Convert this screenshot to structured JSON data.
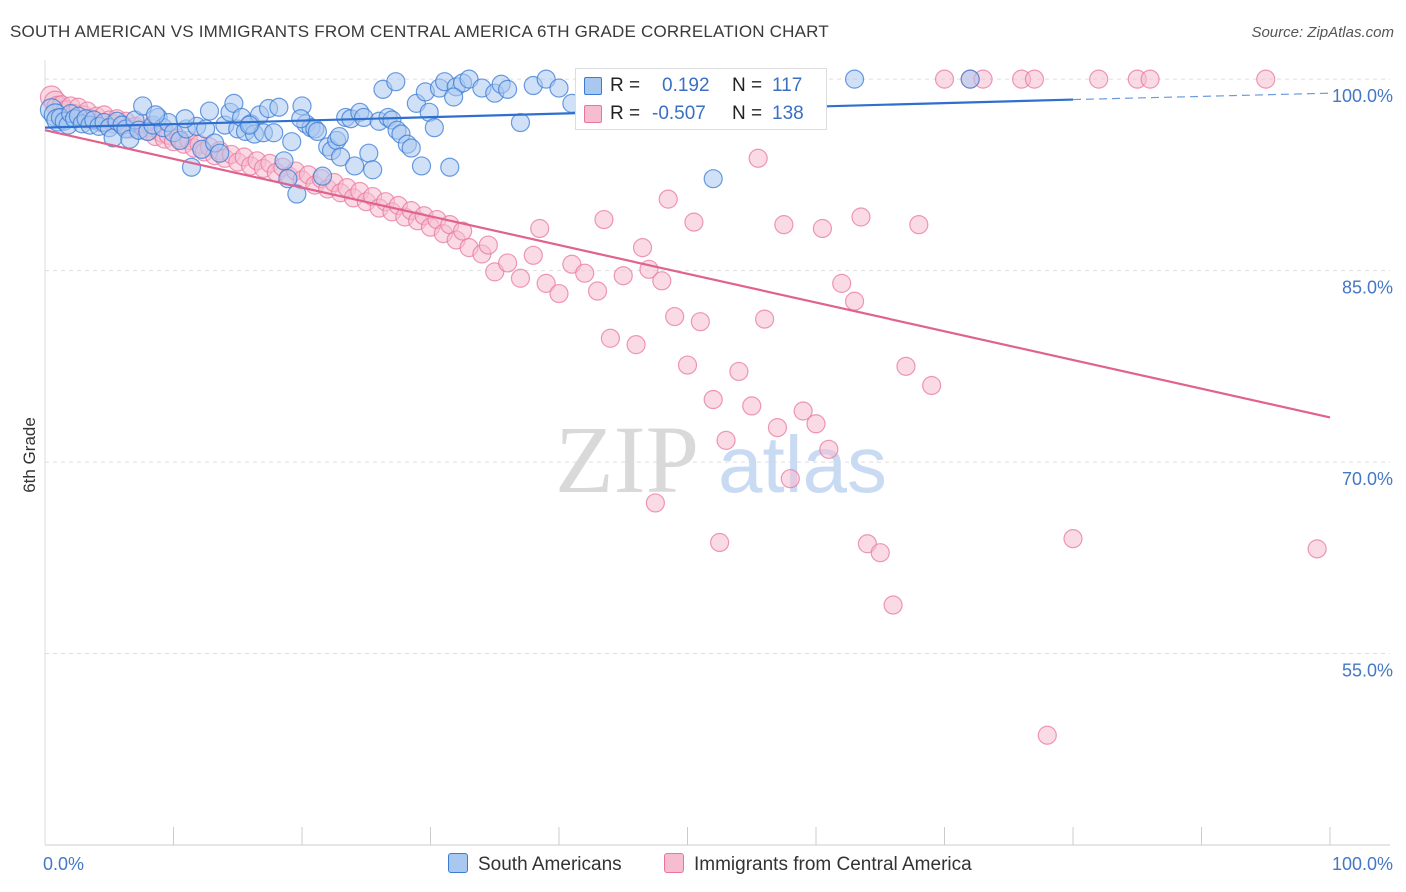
{
  "title": "SOUTH AMERICAN VS IMMIGRANTS FROM CENTRAL AMERICA 6TH GRADE CORRELATION CHART",
  "source": "Source: ZipAtlas.com",
  "watermark": {
    "zip": "ZIP",
    "atlas": "atlas"
  },
  "colors": {
    "blue": "#3a7bd5",
    "blue_fill": "#a9c8f0",
    "blue_line": "#2f6fce",
    "pink": "#e8779f",
    "pink_fill": "#f6bdd0",
    "pink_line": "#e0628f",
    "axis_text": "#4477c4",
    "grid": "#dddddd"
  },
  "legend": {
    "r_label": "R =",
    "n_label": "N =",
    "series": [
      {
        "r": "0.192",
        "n": "117"
      },
      {
        "r": "-0.507",
        "n": "138"
      }
    ]
  },
  "chart_data": {
    "type": "scatter",
    "title": "SOUTH AMERICAN VS IMMIGRANTS FROM CENTRAL AMERICA 6TH GRADE CORRELATION CHART",
    "xlabel": "",
    "ylabel": "6th Grade",
    "xlim": [
      0,
      100
    ],
    "ylim": [
      40,
      101.5
    ],
    "x_tick_labels": [
      "0.0%",
      "100.0%"
    ],
    "y_ticks": [
      {
        "value": 100,
        "label": "100.0%"
      },
      {
        "value": 85,
        "label": "85.0%"
      },
      {
        "value": 70,
        "label": "70.0%"
      },
      {
        "value": 55,
        "label": "55.0%"
      }
    ],
    "series": [
      {
        "name": "South Americans",
        "color": "#3a7bd5",
        "r": 0.192,
        "n": 117,
        "trend": {
          "x": [
            0,
            80
          ],
          "y": [
            96.2,
            98.4
          ],
          "dashed_to": [
            100,
            98.9
          ]
        },
        "points": [
          [
            0.5,
            97.6
          ],
          [
            0.8,
            97.2
          ],
          [
            1,
            96.8
          ],
          [
            1.2,
            97.0
          ],
          [
            1.5,
            96.7
          ],
          [
            1.8,
            96.4
          ],
          [
            2,
            97.3
          ],
          [
            2.3,
            96.9
          ],
          [
            2.6,
            97.1
          ],
          [
            2.9,
            96.5
          ],
          [
            3.2,
            96.9
          ],
          [
            3.5,
            96.4
          ],
          [
            3.8,
            96.8
          ],
          [
            4.2,
            96.3
          ],
          [
            4.6,
            96.6
          ],
          [
            5,
            96.2
          ],
          [
            5.3,
            95.4
          ],
          [
            5.6,
            96.7
          ],
          [
            6,
            96.4
          ],
          [
            6.3,
            96.1
          ],
          [
            6.6,
            95.3
          ],
          [
            7,
            96.8
          ],
          [
            7.3,
            96.0
          ],
          [
            7.6,
            97.9
          ],
          [
            8,
            95.9
          ],
          [
            8.4,
            96.4
          ],
          [
            8.8,
            97.0
          ],
          [
            9.2,
            96.2
          ],
          [
            9.6,
            96.6
          ],
          [
            10,
            95.8
          ],
          [
            10.5,
            95.2
          ],
          [
            11,
            96.1
          ],
          [
            11.4,
            93.1
          ],
          [
            11.8,
            96.3
          ],
          [
            12.2,
            94.5
          ],
          [
            12.5,
            96.1
          ],
          [
            12.8,
            97.5
          ],
          [
            13.2,
            95.0
          ],
          [
            13.6,
            94.2
          ],
          [
            14,
            96.4
          ],
          [
            14.4,
            97.4
          ],
          [
            14.7,
            98.1
          ],
          [
            15,
            96.1
          ],
          [
            15.3,
            97.0
          ],
          [
            15.6,
            95.9
          ],
          [
            16,
            96.5
          ],
          [
            16.3,
            95.7
          ],
          [
            16.7,
            97.2
          ],
          [
            17,
            95.8
          ],
          [
            17.4,
            97.7
          ],
          [
            17.8,
            95.8
          ],
          [
            18.2,
            97.8
          ],
          [
            18.6,
            93.6
          ],
          [
            18.9,
            92.2
          ],
          [
            19.2,
            95.1
          ],
          [
            19.6,
            91.0
          ],
          [
            20,
            97.9
          ],
          [
            20.3,
            96.5
          ],
          [
            20.7,
            96.2
          ],
          [
            21,
            96.1
          ],
          [
            21.2,
            95.9
          ],
          [
            21.6,
            92.4
          ],
          [
            22,
            94.7
          ],
          [
            22.3,
            94.4
          ],
          [
            22.7,
            95.2
          ],
          [
            23,
            93.9
          ],
          [
            23.4,
            97.0
          ],
          [
            23.8,
            96.9
          ],
          [
            24.1,
            93.2
          ],
          [
            24.5,
            97.4
          ],
          [
            24.8,
            97.0
          ],
          [
            25.2,
            94.2
          ],
          [
            25.5,
            92.9
          ],
          [
            26,
            96.7
          ],
          [
            26.3,
            99.2
          ],
          [
            26.7,
            97.0
          ],
          [
            27,
            96.8
          ],
          [
            27.4,
            96.0
          ],
          [
            27.7,
            95.7
          ],
          [
            28.2,
            94.9
          ],
          [
            28.5,
            94.6
          ],
          [
            28.9,
            98.1
          ],
          [
            29.3,
            93.2
          ],
          [
            29.6,
            99.0
          ],
          [
            29.9,
            97.4
          ],
          [
            30.3,
            96.2
          ],
          [
            30.7,
            99.3
          ],
          [
            31.1,
            99.8
          ],
          [
            31.5,
            93.1
          ],
          [
            32,
            99.4
          ],
          [
            32.5,
            99.7
          ],
          [
            33,
            100.0
          ],
          [
            34,
            99.3
          ],
          [
            35,
            98.9
          ],
          [
            35.5,
            99.6
          ],
          [
            36,
            99.2
          ],
          [
            37,
            96.6
          ],
          [
            38,
            99.5
          ],
          [
            39,
            100.0
          ],
          [
            40,
            99.3
          ],
          [
            41,
            98.1
          ],
          [
            42,
            99.4
          ],
          [
            43,
            97.5
          ],
          [
            45,
            96.8
          ],
          [
            48,
            98.5
          ],
          [
            50,
            98.3
          ],
          [
            52,
            92.2
          ],
          [
            55,
            98.6
          ],
          [
            63,
            100.0
          ],
          [
            72,
            100.0
          ],
          [
            8.6,
            97.2
          ],
          [
            10.9,
            96.9
          ],
          [
            15.9,
            96.4
          ],
          [
            19.9,
            96.9
          ],
          [
            22.9,
            95.5
          ],
          [
            27.3,
            99.8
          ],
          [
            31.8,
            98.6
          ]
        ]
      },
      {
        "name": "Immigrants from Central America",
        "color": "#e8779f",
        "r": -0.507,
        "n": 138,
        "trend": {
          "x": [
            0,
            100
          ],
          "y": [
            96.0,
            73.5
          ]
        },
        "points": [
          [
            0.5,
            98.6
          ],
          [
            0.8,
            98.2
          ],
          [
            1,
            97.8
          ],
          [
            1.3,
            98.0
          ],
          [
            1.6,
            97.6
          ],
          [
            2,
            97.9
          ],
          [
            2.3,
            97.3
          ],
          [
            2.6,
            97.8
          ],
          [
            3,
            97.2
          ],
          [
            3.3,
            97.5
          ],
          [
            3.6,
            96.9
          ],
          [
            4,
            97.1
          ],
          [
            4.3,
            96.6
          ],
          [
            4.6,
            97.2
          ],
          [
            5,
            96.8
          ],
          [
            5.3,
            96.5
          ],
          [
            5.6,
            96.9
          ],
          [
            6,
            96.4
          ],
          [
            6.3,
            96.7
          ],
          [
            6.6,
            96.1
          ],
          [
            7,
            96.3
          ],
          [
            7.3,
            96.0
          ],
          [
            7.6,
            96.5
          ],
          [
            8,
            95.9
          ],
          [
            8.3,
            96.2
          ],
          [
            8.6,
            95.5
          ],
          [
            9,
            95.8
          ],
          [
            9.3,
            95.3
          ],
          [
            9.6,
            95.6
          ],
          [
            10,
            95.1
          ],
          [
            10.4,
            95.4
          ],
          [
            10.8,
            94.9
          ],
          [
            11.2,
            95.2
          ],
          [
            11.6,
            94.6
          ],
          [
            12,
            94.9
          ],
          [
            12.4,
            94.3
          ],
          [
            12.8,
            94.7
          ],
          [
            13.2,
            94.0
          ],
          [
            13.6,
            94.4
          ],
          [
            14,
            93.8
          ],
          [
            14.5,
            94.1
          ],
          [
            15,
            93.5
          ],
          [
            15.5,
            93.9
          ],
          [
            16,
            93.2
          ],
          [
            16.5,
            93.6
          ],
          [
            17,
            93.0
          ],
          [
            17.5,
            93.4
          ],
          [
            18,
            92.7
          ],
          [
            18.5,
            93.1
          ],
          [
            19,
            92.4
          ],
          [
            19.5,
            92.8
          ],
          [
            20,
            92.1
          ],
          [
            20.5,
            92.5
          ],
          [
            21,
            91.7
          ],
          [
            21.5,
            92.2
          ],
          [
            22,
            91.4
          ],
          [
            22.5,
            91.9
          ],
          [
            23,
            91.1
          ],
          [
            23.5,
            91.5
          ],
          [
            24,
            90.7
          ],
          [
            24.5,
            91.2
          ],
          [
            25,
            90.4
          ],
          [
            25.5,
            90.8
          ],
          [
            26,
            89.9
          ],
          [
            26.5,
            90.4
          ],
          [
            27,
            89.6
          ],
          [
            27.5,
            90.1
          ],
          [
            28,
            89.2
          ],
          [
            28.5,
            89.7
          ],
          [
            29,
            88.9
          ],
          [
            29.5,
            89.3
          ],
          [
            30,
            88.4
          ],
          [
            30.5,
            89.0
          ],
          [
            31,
            87.9
          ],
          [
            31.5,
            88.6
          ],
          [
            32,
            87.4
          ],
          [
            32.5,
            88.1
          ],
          [
            33,
            86.8
          ],
          [
            34,
            86.3
          ],
          [
            34.5,
            87.0
          ],
          [
            35,
            84.9
          ],
          [
            36,
            85.6
          ],
          [
            37,
            84.4
          ],
          [
            38,
            86.2
          ],
          [
            39,
            84.0
          ],
          [
            40,
            83.2
          ],
          [
            41,
            85.5
          ],
          [
            42,
            84.8
          ],
          [
            43,
            83.4
          ],
          [
            44,
            79.7
          ],
          [
            45,
            84.6
          ],
          [
            46,
            79.2
          ],
          [
            47,
            85.1
          ],
          [
            48,
            84.2
          ],
          [
            49,
            81.4
          ],
          [
            50,
            77.6
          ],
          [
            51,
            81.0
          ],
          [
            52,
            74.9
          ],
          [
            53,
            71.7
          ],
          [
            54,
            77.1
          ],
          [
            55,
            74.4
          ],
          [
            56,
            81.2
          ],
          [
            57,
            72.7
          ],
          [
            58,
            68.7
          ],
          [
            59,
            74.0
          ],
          [
            60,
            73.0
          ],
          [
            61,
            71.0
          ],
          [
            62,
            84.0
          ],
          [
            63,
            82.6
          ],
          [
            64,
            63.6
          ],
          [
            65,
            62.9
          ],
          [
            66,
            58.8
          ],
          [
            67,
            77.5
          ],
          [
            68,
            88.6
          ],
          [
            69,
            76.0
          ],
          [
            70,
            100.0
          ],
          [
            72,
            100.0
          ],
          [
            73,
            100.0
          ],
          [
            76,
            100.0
          ],
          [
            77,
            100.0
          ],
          [
            78,
            48.6
          ],
          [
            80,
            64.0
          ],
          [
            82,
            100.0
          ],
          [
            85,
            100.0
          ],
          [
            86,
            100.0
          ],
          [
            95,
            100.0
          ],
          [
            99,
            63.2
          ],
          [
            38.5,
            88.3
          ],
          [
            55.5,
            93.8
          ],
          [
            50.5,
            88.8
          ],
          [
            46.5,
            86.8
          ],
          [
            48.5,
            90.6
          ],
          [
            63.5,
            89.2
          ],
          [
            47.5,
            66.8
          ],
          [
            52.5,
            63.7
          ],
          [
            57.5,
            88.6
          ],
          [
            60.5,
            88.3
          ],
          [
            43.5,
            89.0
          ]
        ]
      }
    ]
  },
  "bottom_legend": [
    {
      "label": "South Americans"
    },
    {
      "label": "Immigrants from Central America"
    }
  ]
}
